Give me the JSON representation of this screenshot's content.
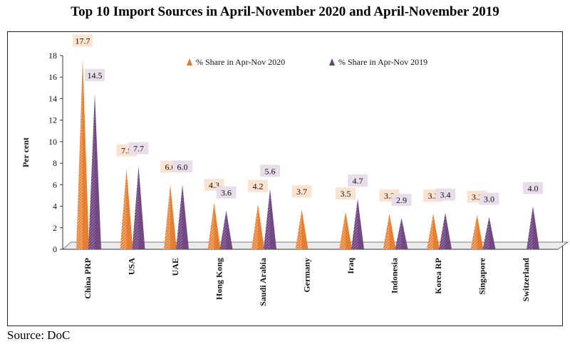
{
  "chart_data": {
    "type": "bar",
    "title": "Top 10 Import Sources in April-November 2020 and April-November 2019",
    "ylabel": "Per cent",
    "xlabel": "",
    "ylim": [
      0,
      18
    ],
    "yticks": [
      0,
      2,
      4,
      6,
      8,
      10,
      12,
      14,
      16,
      18
    ],
    "legend_position": "top-right",
    "categories": [
      "China PRP",
      "USA",
      "UAE",
      "Hong Kong",
      "Saudi Arabia",
      "Germany",
      "Iraq",
      "Indonesia",
      "Korea RP",
      "Singapore",
      "Switzerland"
    ],
    "series": [
      {
        "name": "% Share in Apr-Nov 2020",
        "color": "#e07a2a",
        "values": [
          17.7,
          7.5,
          6.0,
          4.3,
          4.2,
          3.7,
          3.5,
          3.3,
          3.3,
          3.2,
          null
        ]
      },
      {
        "name": "% Share in Apr-Nov 2019",
        "color": "#6b3f7a",
        "values": [
          14.5,
          7.7,
          6.0,
          3.6,
          5.6,
          null,
          4.7,
          2.9,
          3.4,
          3.0,
          4.0
        ]
      }
    ]
  },
  "footer": {
    "source": "Source: DoC"
  }
}
